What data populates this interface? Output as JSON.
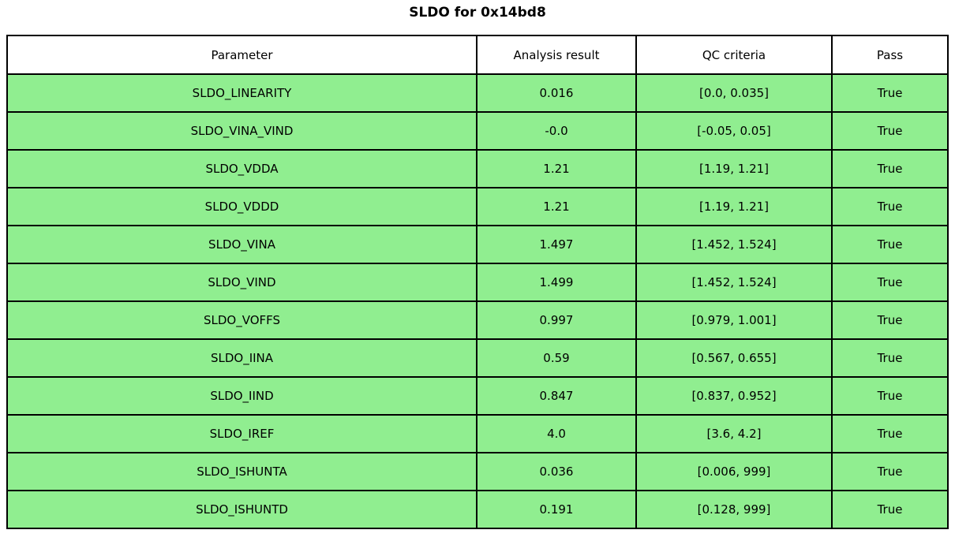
{
  "title": "SLDO for 0x14bd8",
  "table": {
    "columns": [
      "Parameter",
      "Analysis result",
      "QC criteria",
      "Pass"
    ],
    "rows": [
      {
        "parameter": "SLDO_LINEARITY",
        "result": "0.016",
        "criteria": "[0.0, 0.035]",
        "pass": "True"
      },
      {
        "parameter": "SLDO_VINA_VIND",
        "result": "-0.0",
        "criteria": "[-0.05, 0.05]",
        "pass": "True"
      },
      {
        "parameter": "SLDO_VDDA",
        "result": "1.21",
        "criteria": "[1.19, 1.21]",
        "pass": "True"
      },
      {
        "parameter": "SLDO_VDDD",
        "result": "1.21",
        "criteria": "[1.19, 1.21]",
        "pass": "True"
      },
      {
        "parameter": "SLDO_VINA",
        "result": "1.497",
        "criteria": "[1.452, 1.524]",
        "pass": "True"
      },
      {
        "parameter": "SLDO_VIND",
        "result": "1.499",
        "criteria": "[1.452, 1.524]",
        "pass": "True"
      },
      {
        "parameter": "SLDO_VOFFS",
        "result": "0.997",
        "criteria": "[0.979, 1.001]",
        "pass": "True"
      },
      {
        "parameter": "SLDO_IINA",
        "result": "0.59",
        "criteria": "[0.567, 0.655]",
        "pass": "True"
      },
      {
        "parameter": "SLDO_IIND",
        "result": "0.847",
        "criteria": "[0.837, 0.952]",
        "pass": "True"
      },
      {
        "parameter": "SLDO_IREF",
        "result": "4.0",
        "criteria": "[3.6, 4.2]",
        "pass": "True"
      },
      {
        "parameter": "SLDO_ISHUNTA",
        "result": "0.036",
        "criteria": "[0.006, 999]",
        "pass": "True"
      },
      {
        "parameter": "SLDO_ISHUNTD",
        "result": "0.191",
        "criteria": "[0.128, 999]",
        "pass": "True"
      }
    ]
  },
  "colors": {
    "pass_row_bg": "#90ee90",
    "header_bg": "#ffffff",
    "border": "#000000"
  }
}
